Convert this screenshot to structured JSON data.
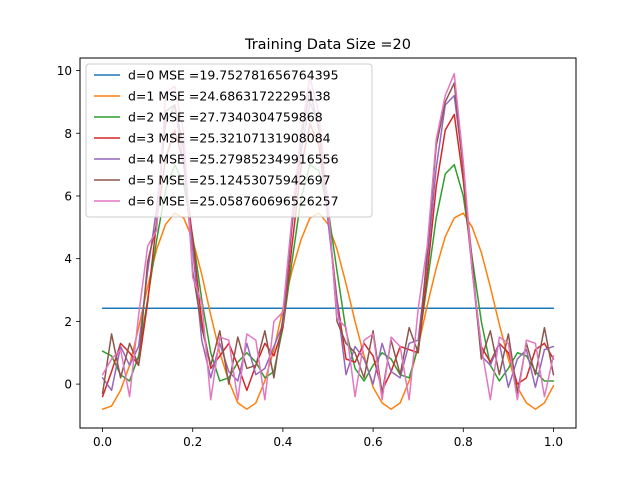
{
  "chart_data": {
    "type": "line",
    "title": "Training Data Size =20",
    "xlabel": "",
    "ylabel": "",
    "xlim": [
      -0.05,
      1.05
    ],
    "ylim": [
      -1.4,
      10.4
    ],
    "xticks": [
      0.0,
      0.2,
      0.4,
      0.6,
      0.8,
      1.0
    ],
    "xtick_labels": [
      "0.0",
      "0.2",
      "0.4",
      "0.6",
      "0.8",
      "1.0"
    ],
    "yticks": [
      0,
      2,
      4,
      6,
      8,
      10
    ],
    "ytick_labels": [
      "0",
      "2",
      "4",
      "6",
      "8",
      "10"
    ],
    "grid": false,
    "legend_position": "top-left",
    "series": [
      {
        "name": "d=0 MSE =19.752781656764395",
        "color": "#1f77b4",
        "x": [
          0.0,
          0.25,
          0.5,
          0.75,
          1.0
        ],
        "y": [
          2.42,
          2.42,
          2.42,
          2.42,
          2.42
        ]
      },
      {
        "name": "d=1 MSE =24.68631722295138",
        "color": "#ff7f0e",
        "x": [
          0.0,
          0.02,
          0.04,
          0.06,
          0.08,
          0.1,
          0.12,
          0.14,
          0.16,
          0.18,
          0.2,
          0.22,
          0.24,
          0.26,
          0.28,
          0.3,
          0.32,
          0.34,
          0.36,
          0.38,
          0.4,
          0.42,
          0.44,
          0.46,
          0.48,
          0.5,
          0.52,
          0.54,
          0.56,
          0.58,
          0.6,
          0.62,
          0.64,
          0.66,
          0.68,
          0.7,
          0.72,
          0.74,
          0.76,
          0.78,
          0.8,
          0.82,
          0.84,
          0.86,
          0.88,
          0.9,
          0.92,
          0.94,
          0.96,
          0.98,
          1.0
        ],
        "y": [
          -0.8,
          -0.7,
          -0.2,
          0.6,
          1.8,
          3.1,
          4.3,
          5.1,
          5.45,
          5.3,
          4.6,
          3.5,
          2.2,
          1.0,
          0.1,
          -0.6,
          -0.8,
          -0.6,
          0.1,
          1.1,
          2.4,
          3.6,
          4.6,
          5.3,
          5.45,
          5.1,
          4.3,
          3.2,
          2.0,
          0.9,
          -0.1,
          -0.6,
          -0.8,
          -0.6,
          0.1,
          1.2,
          2.5,
          3.7,
          4.7,
          5.3,
          5.45,
          5.0,
          4.2,
          3.1,
          1.9,
          0.8,
          -0.1,
          -0.6,
          -0.8,
          -0.6,
          -0.05
        ]
      },
      {
        "name": "d=2 MSE =27.7340304759868",
        "color": "#2ca02c",
        "x": [
          0.0,
          0.02,
          0.04,
          0.06,
          0.08,
          0.1,
          0.12,
          0.14,
          0.16,
          0.18,
          0.2,
          0.22,
          0.24,
          0.26,
          0.28,
          0.3,
          0.32,
          0.34,
          0.36,
          0.38,
          0.4,
          0.42,
          0.44,
          0.46,
          0.48,
          0.5,
          0.52,
          0.54,
          0.56,
          0.58,
          0.6,
          0.62,
          0.64,
          0.66,
          0.68,
          0.7,
          0.72,
          0.74,
          0.76,
          0.78,
          0.8,
          0.82,
          0.84,
          0.86,
          0.88,
          0.9,
          0.92,
          0.94,
          0.96,
          0.98,
          1.0
        ],
        "y": [
          1.05,
          0.9,
          0.3,
          0.1,
          0.9,
          2.7,
          4.6,
          6.2,
          7.0,
          6.4,
          4.7,
          2.7,
          1.0,
          0.1,
          0.2,
          0.7,
          1.0,
          0.7,
          0.2,
          0.4,
          1.8,
          3.9,
          5.9,
          7.0,
          6.8,
          5.6,
          3.6,
          1.7,
          0.5,
          0.1,
          0.6,
          1.0,
          0.8,
          0.3,
          0.2,
          1.2,
          3.2,
          5.3,
          6.7,
          7.0,
          6.0,
          4.0,
          2.0,
          0.6,
          0.1,
          0.5,
          1.0,
          0.9,
          0.4,
          0.1,
          0.1
        ]
      },
      {
        "name": "d=3 MSE =25.32107131908084",
        "color": "#d62728",
        "x": [
          0.0,
          0.02,
          0.04,
          0.06,
          0.08,
          0.1,
          0.12,
          0.14,
          0.16,
          0.18,
          0.2,
          0.22,
          0.24,
          0.26,
          0.28,
          0.3,
          0.32,
          0.34,
          0.36,
          0.38,
          0.4,
          0.42,
          0.44,
          0.46,
          0.48,
          0.5,
          0.52,
          0.54,
          0.56,
          0.58,
          0.6,
          0.62,
          0.64,
          0.66,
          0.68,
          0.7,
          0.72,
          0.74,
          0.76,
          0.78,
          0.8,
          0.82,
          0.84,
          0.86,
          0.88,
          0.9,
          0.92,
          0.94,
          0.96,
          0.98,
          1.0
        ],
        "y": [
          -0.4,
          0.4,
          1.3,
          1.0,
          0.6,
          2.6,
          5.2,
          7.2,
          8.1,
          7.0,
          4.6,
          2.0,
          0.5,
          0.9,
          1.3,
          0.6,
          -0.2,
          0.6,
          1.3,
          0.9,
          1.8,
          4.4,
          6.9,
          8.3,
          7.6,
          5.3,
          2.7,
          0.8,
          0.7,
          1.3,
          0.9,
          -0.2,
          0.4,
          1.2,
          1.1,
          1.0,
          3.5,
          6.3,
          8.1,
          8.6,
          6.5,
          3.6,
          1.2,
          0.7,
          1.3,
          1.0,
          0.0,
          0.2,
          1.1,
          1.3,
          0.8
        ]
      },
      {
        "name": "d=4 MSE =25.279852349916556",
        "color": "#9467bd",
        "x": [
          0.0,
          0.02,
          0.04,
          0.06,
          0.08,
          0.1,
          0.12,
          0.14,
          0.16,
          0.18,
          0.2,
          0.22,
          0.24,
          0.26,
          0.28,
          0.3,
          0.32,
          0.34,
          0.36,
          0.38,
          0.4,
          0.42,
          0.44,
          0.46,
          0.48,
          0.5,
          0.52,
          0.54,
          0.56,
          0.58,
          0.6,
          0.62,
          0.64,
          0.66,
          0.68,
          0.7,
          0.72,
          0.74,
          0.76,
          0.78,
          0.8,
          0.82,
          0.84,
          0.86,
          0.88,
          0.9,
          0.92,
          0.94,
          0.96,
          0.98,
          1.0
        ],
        "y": [
          0.2,
          -0.2,
          1.2,
          0.6,
          1.2,
          3.6,
          5.6,
          8.3,
          8.9,
          7.0,
          4.3,
          1.4,
          0.2,
          1.3,
          0.4,
          0.1,
          1.3,
          0.3,
          0.5,
          1.2,
          1.9,
          5.0,
          7.4,
          9.0,
          8.2,
          5.2,
          2.6,
          0.3,
          1.2,
          0.8,
          0.0,
          1.3,
          0.4,
          0.2,
          1.3,
          1.4,
          3.9,
          6.9,
          8.9,
          9.2,
          6.9,
          3.6,
          0.9,
          0.6,
          1.3,
          -0.1,
          0.8,
          1.1,
          -0.1,
          1.1,
          1.2
        ]
      },
      {
        "name": "d=5 MSE =25.12453075942697",
        "color": "#8c564b",
        "x": [
          0.0,
          0.02,
          0.04,
          0.06,
          0.08,
          0.1,
          0.12,
          0.14,
          0.16,
          0.18,
          0.2,
          0.22,
          0.24,
          0.26,
          0.28,
          0.3,
          0.32,
          0.34,
          0.36,
          0.38,
          0.4,
          0.42,
          0.44,
          0.46,
          0.48,
          0.5,
          0.52,
          0.54,
          0.56,
          0.58,
          0.6,
          0.62,
          0.64,
          0.66,
          0.68,
          0.7,
          0.72,
          0.74,
          0.76,
          0.78,
          0.8,
          0.82,
          0.84,
          0.86,
          0.88,
          0.9,
          0.92,
          0.94,
          0.96,
          0.98,
          1.0
        ],
        "y": [
          -0.3,
          1.6,
          0.2,
          1.3,
          0.6,
          3.9,
          5.1,
          8.7,
          8.9,
          7.5,
          3.6,
          1.8,
          0.6,
          1.7,
          0.0,
          1.5,
          0.5,
          0.6,
          1.7,
          0.2,
          2.1,
          5.1,
          7.8,
          9.4,
          8.1,
          5.8,
          2.0,
          1.3,
          1.0,
          0.2,
          1.7,
          -0.3,
          1.4,
          0.3,
          1.8,
          1.0,
          4.2,
          7.6,
          9.0,
          9.6,
          6.8,
          3.9,
          0.8,
          1.7,
          0.3,
          1.6,
          -0.3,
          1.3,
          0.3,
          1.8,
          0.3
        ]
      },
      {
        "name": "d=6 MSE =25.058760696526257",
        "color": "#e377c2",
        "x": [
          0.0,
          0.02,
          0.04,
          0.06,
          0.08,
          0.1,
          0.12,
          0.14,
          0.16,
          0.18,
          0.2,
          0.22,
          0.24,
          0.26,
          0.28,
          0.3,
          0.32,
          0.34,
          0.36,
          0.38,
          0.4,
          0.42,
          0.44,
          0.46,
          0.48,
          0.5,
          0.52,
          0.54,
          0.56,
          0.58,
          0.6,
          0.62,
          0.64,
          0.66,
          0.68,
          0.7,
          0.72,
          0.74,
          0.76,
          0.78,
          0.8,
          0.82,
          0.84,
          0.86,
          0.88,
          0.9,
          0.92,
          0.94,
          0.96,
          0.98,
          1.0
        ],
        "y": [
          0.3,
          0.8,
          1.1,
          -0.4,
          2.2,
          4.4,
          4.9,
          9.3,
          9.5,
          8.0,
          3.4,
          2.6,
          -0.5,
          1.5,
          1.4,
          -0.5,
          1.6,
          1.4,
          -0.5,
          2.0,
          2.3,
          5.3,
          8.0,
          9.8,
          8.6,
          5.7,
          2.1,
          1.8,
          -0.4,
          1.4,
          1.6,
          -0.5,
          1.5,
          1.2,
          -0.5,
          2.4,
          4.4,
          7.8,
          9.2,
          9.9,
          7.1,
          3.6,
          1.2,
          -0.5,
          1.5,
          1.3,
          -0.5,
          1.4,
          1.3,
          -0.4,
          0.9
        ]
      }
    ]
  }
}
